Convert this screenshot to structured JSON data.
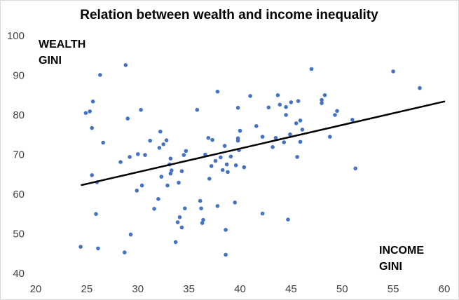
{
  "chart_data": {
    "type": "scatter",
    "title": "Relation between wealth and income inequality",
    "ylabel_lines": [
      "WEALTH",
      "GINI"
    ],
    "xlabel_lines": [
      "INCOME",
      "GINI"
    ],
    "xlim": [
      20,
      60
    ],
    "ylim": [
      40,
      100
    ],
    "x_ticks": [
      "20",
      "25",
      "30",
      "35",
      "40",
      "45",
      "50",
      "55",
      "60"
    ],
    "y_ticks": [
      "40",
      "50",
      "60",
      "70",
      "80",
      "90",
      "100"
    ],
    "grid": false,
    "colors": {
      "point": "#4472C4",
      "trend": "#000000",
      "tick_text": "#404040"
    },
    "trendline": {
      "x": [
        24.5,
        60
      ],
      "y": [
        62.3,
        83.4
      ]
    },
    "points": [
      [
        24.4,
        46.7
      ],
      [
        24.9,
        80.5
      ],
      [
        25.3,
        80.9
      ],
      [
        25.5,
        76.7
      ],
      [
        25.6,
        83.4
      ],
      [
        25.5,
        64.8
      ],
      [
        25.9,
        55.0
      ],
      [
        26.0,
        63.0
      ],
      [
        26.1,
        46.3
      ],
      [
        26.3,
        90.1
      ],
      [
        26.6,
        73.0
      ],
      [
        28.3,
        68.1
      ],
      [
        28.7,
        45.3
      ],
      [
        28.8,
        92.6
      ],
      [
        29.0,
        79.1
      ],
      [
        29.2,
        69.4
      ],
      [
        29.3,
        49.8
      ],
      [
        29.9,
        60.9
      ],
      [
        30.0,
        70.1
      ],
      [
        30.3,
        81.3
      ],
      [
        30.4,
        62.2
      ],
      [
        30.7,
        69.9
      ],
      [
        31.2,
        73.5
      ],
      [
        31.6,
        56.3
      ],
      [
        32.0,
        58.8
      ],
      [
        32.1,
        71.7
      ],
      [
        32.2,
        75.8
      ],
      [
        32.3,
        64.4
      ],
      [
        32.5,
        72.6
      ],
      [
        32.8,
        73.6
      ],
      [
        32.9,
        62.2
      ],
      [
        33.2,
        69.0
      ],
      [
        33.1,
        67.5
      ],
      [
        33.2,
        65.2
      ],
      [
        33.3,
        66.0
      ],
      [
        33.7,
        47.9
      ],
      [
        33.9,
        52.9
      ],
      [
        34.1,
        54.2
      ],
      [
        34.0,
        62.9
      ],
      [
        34.3,
        51.6
      ],
      [
        34.3,
        65.8
      ],
      [
        34.5,
        69.9
      ],
      [
        34.6,
        56.4
      ],
      [
        34.7,
        70.9
      ],
      [
        35.8,
        81.3
      ],
      [
        36.1,
        58.3
      ],
      [
        36.2,
        56.4
      ],
      [
        36.3,
        52.7
      ],
      [
        36.4,
        53.5
      ],
      [
        36.6,
        70.0
      ],
      [
        36.9,
        74.2
      ],
      [
        37.0,
        63.9
      ],
      [
        37.2,
        67.1
      ],
      [
        37.3,
        73.7
      ],
      [
        37.6,
        68.4
      ],
      [
        37.8,
        85.9
      ],
      [
        37.8,
        57.0
      ],
      [
        38.1,
        69.3
      ],
      [
        38.3,
        66.1
      ],
      [
        38.5,
        72.2
      ],
      [
        38.6,
        51.0
      ],
      [
        38.6,
        44.7
      ],
      [
        38.7,
        67.5
      ],
      [
        38.8,
        65.6
      ],
      [
        39.1,
        69.5
      ],
      [
        39.5,
        57.9
      ],
      [
        39.6,
        67.3
      ],
      [
        39.8,
        81.8
      ],
      [
        39.8,
        74.1
      ],
      [
        39.8,
        73.5
      ],
      [
        39.9,
        71.1
      ],
      [
        40.0,
        76.0
      ],
      [
        40.4,
        66.8
      ],
      [
        41.0,
        84.8
      ],
      [
        41.6,
        77.2
      ],
      [
        42.2,
        74.5
      ],
      [
        42.2,
        55.1
      ],
      [
        42.8,
        81.9
      ],
      [
        43.2,
        71.9
      ],
      [
        43.5,
        74.2
      ],
      [
        43.7,
        85.0
      ],
      [
        43.9,
        82.6
      ],
      [
        44.3,
        73.1
      ],
      [
        44.5,
        82.0
      ],
      [
        44.5,
        80.0
      ],
      [
        44.7,
        53.6
      ],
      [
        44.9,
        75.1
      ],
      [
        45.0,
        83.2
      ],
      [
        45.5,
        77.9
      ],
      [
        45.6,
        69.4
      ],
      [
        45.7,
        83.5
      ],
      [
        45.9,
        78.6
      ],
      [
        45.9,
        73.2
      ],
      [
        46.1,
        76.3
      ],
      [
        47.0,
        91.6
      ],
      [
        48.0,
        83.8
      ],
      [
        48.0,
        83.0
      ],
      [
        48.3,
        85.0
      ],
      [
        48.8,
        74.5
      ],
      [
        49.3,
        80.0
      ],
      [
        49.5,
        81.0
      ],
      [
        51.0,
        78.8
      ],
      [
        51.3,
        66.5
      ],
      [
        55.0,
        91.0
      ],
      [
        57.6,
        86.8
      ]
    ]
  }
}
